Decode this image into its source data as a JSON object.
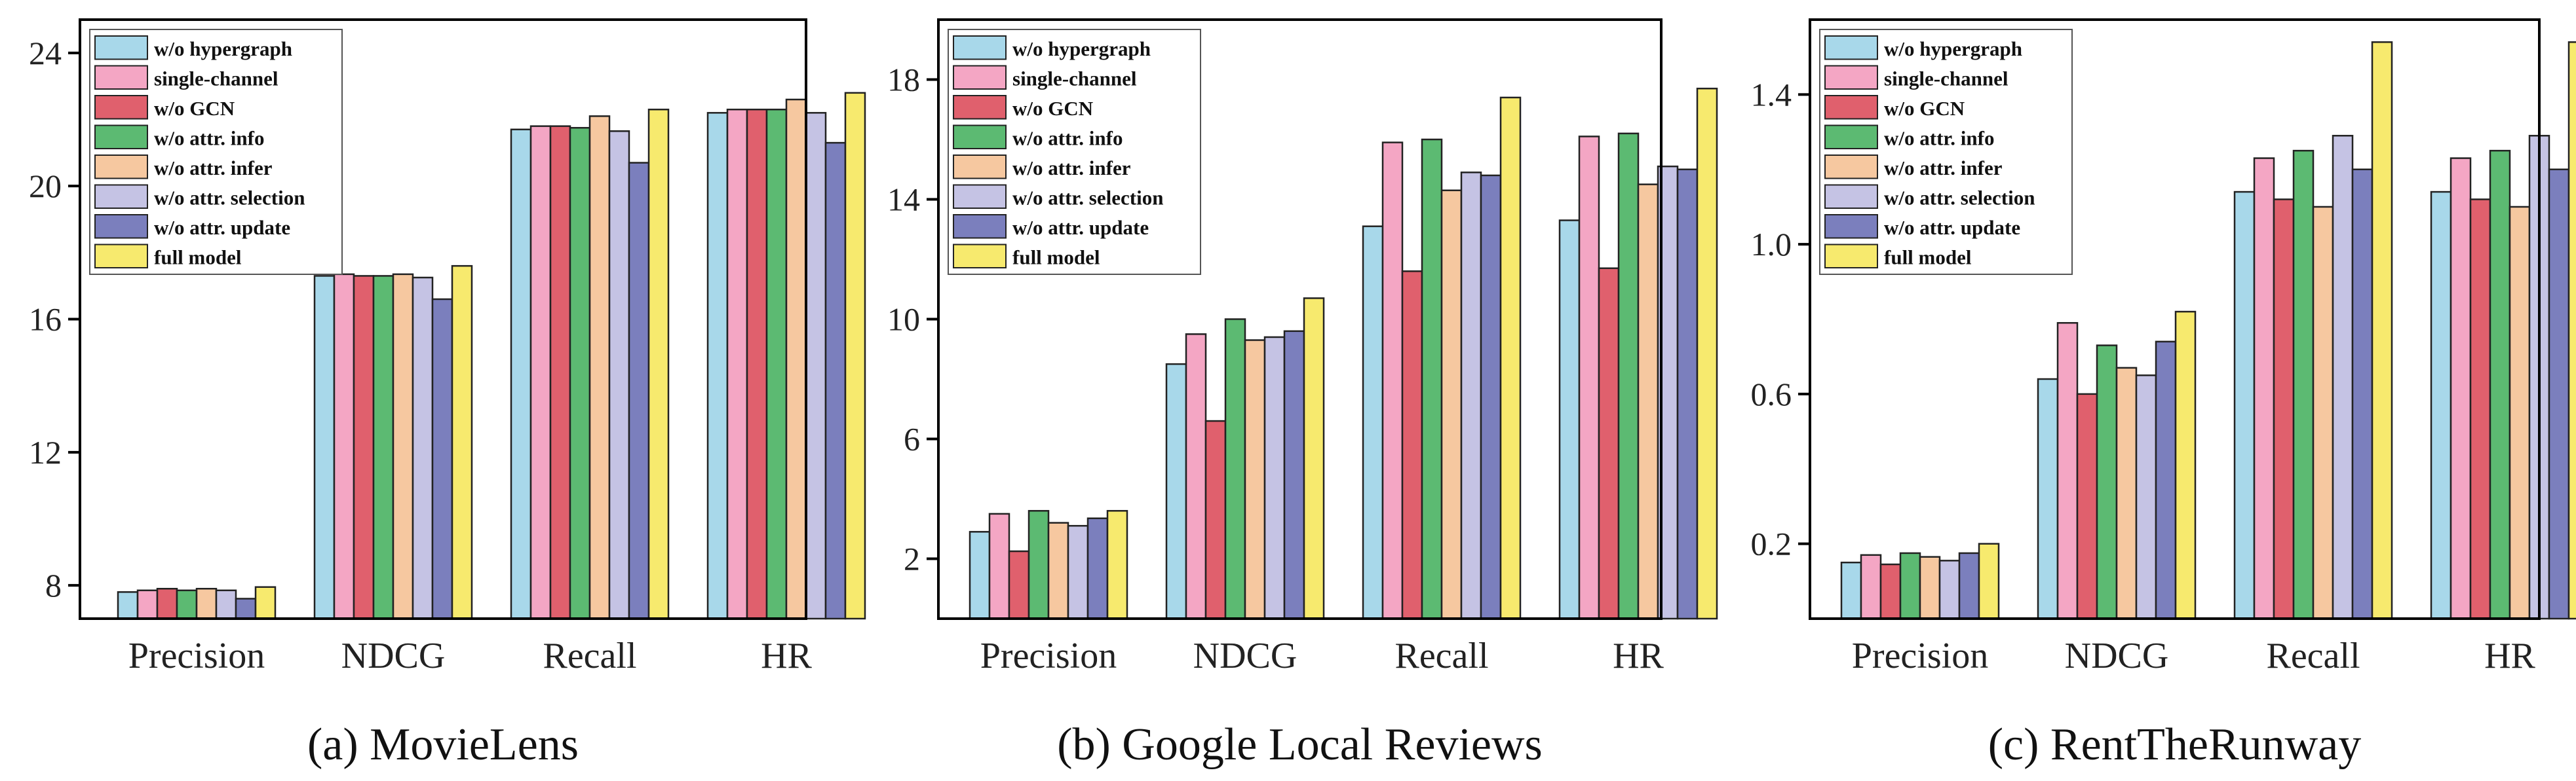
{
  "series_colors": [
    "#a8d8ea",
    "#f4a6c4",
    "#e0606d",
    "#5cba72",
    "#f6c8a0",
    "#c5c3e4",
    "#7b7fbd",
    "#f7ea6e"
  ],
  "chart_data": [
    {
      "type": "bar",
      "caption": "(a) MovieLens",
      "categories": [
        "Precision",
        "NDCG",
        "Recall",
        "HR"
      ],
      "ylim": [
        7,
        25
      ],
      "yticks": [
        8,
        12,
        16,
        20,
        24
      ],
      "ytick_labels": [
        "8",
        "12",
        "16",
        "20",
        "24"
      ],
      "legend_position": "top-left",
      "series": [
        {
          "name": "w/o hypergraph",
          "values": [
            7.8,
            17.3,
            21.7,
            22.2
          ]
        },
        {
          "name": "single-channel",
          "values": [
            7.85,
            17.35,
            21.8,
            22.3
          ]
        },
        {
          "name": "w/o GCN",
          "values": [
            7.9,
            17.3,
            21.8,
            22.3
          ]
        },
        {
          "name": "w/o attr. info",
          "values": [
            7.85,
            17.3,
            21.75,
            22.3
          ]
        },
        {
          "name": "w/o attr. infer",
          "values": [
            7.9,
            17.35,
            22.1,
            22.6
          ]
        },
        {
          "name": "w/o attr. selection",
          "values": [
            7.85,
            17.25,
            21.65,
            22.2
          ]
        },
        {
          "name": "w/o attr. update",
          "values": [
            7.6,
            16.6,
            20.7,
            21.3
          ]
        },
        {
          "name": "full model",
          "values": [
            7.95,
            17.6,
            22.3,
            22.8
          ]
        }
      ]
    },
    {
      "type": "bar",
      "caption": "(b) Google Local Reviews",
      "categories": [
        "Precision",
        "NDCG",
        "Recall",
        "HR"
      ],
      "ylim": [
        0,
        20
      ],
      "yticks": [
        2,
        6,
        10,
        14,
        18
      ],
      "ytick_labels": [
        "2",
        "6",
        "10",
        "14",
        "18"
      ],
      "legend_position": "top-left",
      "series": [
        {
          "name": "w/o hypergraph",
          "values": [
            2.9,
            8.5,
            13.1,
            13.3
          ]
        },
        {
          "name": "single-channel",
          "values": [
            3.5,
            9.5,
            15.9,
            16.1
          ]
        },
        {
          "name": "w/o GCN",
          "values": [
            2.25,
            6.6,
            11.6,
            11.7
          ]
        },
        {
          "name": "w/o attr. info",
          "values": [
            3.6,
            10.0,
            16.0,
            16.2
          ]
        },
        {
          "name": "w/o attr. infer",
          "values": [
            3.2,
            9.3,
            14.3,
            14.5
          ]
        },
        {
          "name": "w/o attr. selection",
          "values": [
            3.1,
            9.4,
            14.9,
            15.1
          ]
        },
        {
          "name": "w/o attr. update",
          "values": [
            3.35,
            9.6,
            14.8,
            15.0
          ]
        },
        {
          "name": "full model",
          "values": [
            3.6,
            10.7,
            17.4,
            17.7
          ]
        }
      ]
    },
    {
      "type": "bar",
      "caption": "(c) RentTheRunway",
      "categories": [
        "Precision",
        "NDCG",
        "Recall",
        "HR"
      ],
      "ylim": [
        0,
        1.6
      ],
      "yticks": [
        0.2,
        0.6,
        1.0,
        1.4
      ],
      "ytick_labels": [
        "0.2",
        "0.6",
        "1.0",
        "1.4"
      ],
      "legend_position": "top-left",
      "series": [
        {
          "name": "w/o hypergraph",
          "values": [
            0.15,
            0.64,
            1.14,
            1.14
          ]
        },
        {
          "name": "single-channel",
          "values": [
            0.17,
            0.79,
            1.23,
            1.23
          ]
        },
        {
          "name": "w/o GCN",
          "values": [
            0.145,
            0.6,
            1.12,
            1.12
          ]
        },
        {
          "name": "w/o attr. info",
          "values": [
            0.175,
            0.73,
            1.25,
            1.25
          ]
        },
        {
          "name": "w/o attr. infer",
          "values": [
            0.165,
            0.67,
            1.1,
            1.1
          ]
        },
        {
          "name": "w/o attr. selection",
          "values": [
            0.155,
            0.65,
            1.29,
            1.29
          ]
        },
        {
          "name": "w/o attr. update",
          "values": [
            0.175,
            0.74,
            1.2,
            1.2
          ]
        },
        {
          "name": "full model",
          "values": [
            0.2,
            0.82,
            1.54,
            1.54
          ]
        }
      ]
    }
  ]
}
